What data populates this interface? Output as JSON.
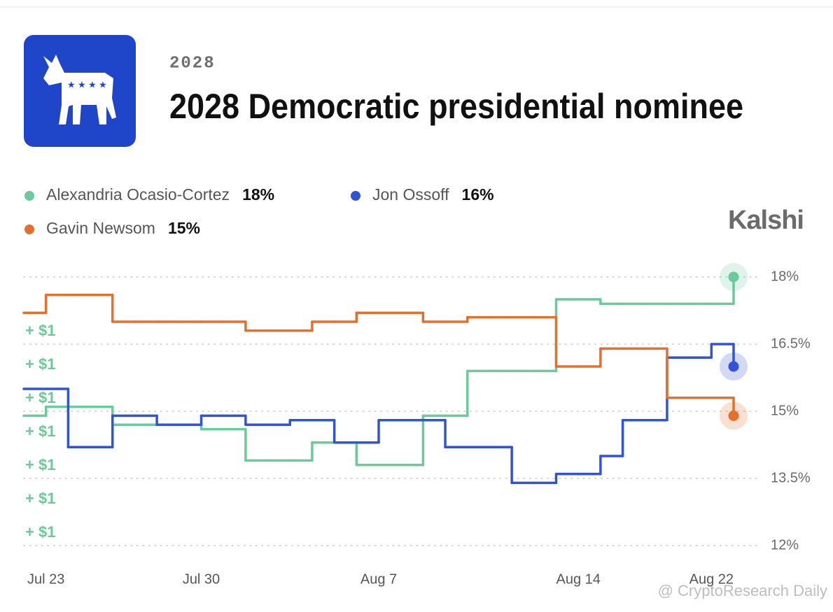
{
  "chart_data": {
    "type": "line",
    "eyebrow": "2028",
    "title": "2028 Democratic presidential nominee",
    "brand": "Kalshi",
    "watermark": "@ CryptoResearch Daily",
    "side_labels": [
      "+ $1",
      "+ $1",
      "+ $1",
      "+ $1",
      "+ $1",
      "+ $1",
      "+ $1"
    ],
    "categories": [
      null,
      "Jul 23",
      null,
      null,
      null,
      null,
      null,
      null,
      "Jul 30",
      null,
      null,
      null,
      null,
      null,
      null,
      null,
      "Aug 7",
      null,
      null,
      null,
      null,
      null,
      null,
      null,
      "Aug 14",
      null,
      null,
      null,
      null,
      null,
      null,
      "Aug 22",
      null
    ],
    "ylim": [
      12,
      18
    ],
    "yticks": [
      {
        "value": 18,
        "label": "18%"
      },
      {
        "value": 16.5,
        "label": "16.5%"
      },
      {
        "value": 15,
        "label": "15%"
      },
      {
        "value": 13.5,
        "label": "13.5%"
      },
      {
        "value": 12,
        "label": "12%"
      }
    ],
    "grid": true,
    "series": [
      {
        "name": "Alexandria Ocasio-Cortez",
        "percent_label": "18%",
        "color": "#6bc99b",
        "values": [
          14.9,
          15.1,
          15.1,
          15.1,
          14.7,
          14.7,
          14.7,
          14.7,
          14.6,
          14.6,
          13.9,
          13.9,
          13.9,
          14.3,
          14.3,
          13.8,
          13.8,
          13.8,
          14.9,
          14.9,
          15.9,
          15.9,
          15.9,
          15.9,
          17.5,
          17.5,
          17.4,
          17.4,
          17.4,
          17.4,
          17.4,
          17.4,
          18.0
        ]
      },
      {
        "name": "Jon Ossoff",
        "percent_label": "16%",
        "color": "#3153d6",
        "values": [
          15.5,
          15.5,
          14.2,
          14.2,
          14.9,
          14.9,
          14.7,
          14.7,
          14.9,
          14.9,
          14.7,
          14.7,
          14.8,
          14.8,
          14.3,
          14.3,
          14.8,
          14.8,
          14.8,
          14.2,
          14.2,
          14.2,
          13.4,
          13.4,
          13.6,
          13.6,
          14.0,
          14.8,
          14.8,
          16.2,
          16.2,
          16.5,
          16.0
        ]
      },
      {
        "name": "Gavin Newsom",
        "percent_label": "15%",
        "color": "#e2702f",
        "values": [
          17.2,
          17.6,
          17.6,
          17.6,
          17.0,
          17.0,
          17.0,
          17.0,
          17.0,
          17.0,
          16.8,
          16.8,
          16.8,
          17.0,
          17.0,
          17.2,
          17.2,
          17.2,
          17.0,
          17.0,
          17.1,
          17.1,
          17.1,
          17.1,
          16.0,
          16.0,
          16.4,
          16.4,
          16.4,
          15.3,
          15.3,
          15.3,
          14.9
        ]
      }
    ]
  }
}
